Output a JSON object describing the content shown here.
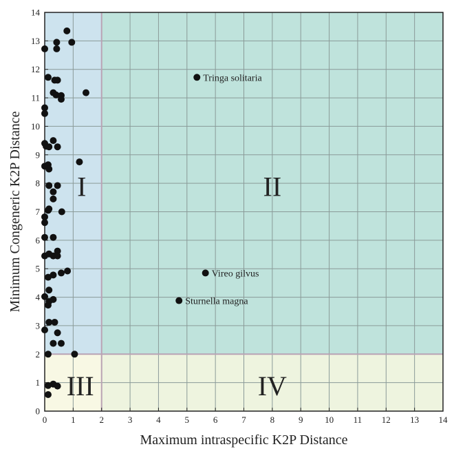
{
  "chart_data": {
    "type": "scatter",
    "xlabel": "Maximum intraspecific K2P Distance",
    "ylabel": "Minimum Congeneric K2P Distance",
    "xlim": [
      0,
      14
    ],
    "ylim": [
      0,
      14
    ],
    "xticks": [
      0,
      1,
      2,
      3,
      4,
      5,
      6,
      7,
      8,
      9,
      10,
      11,
      12,
      13,
      14
    ],
    "yticks": [
      0,
      1,
      2,
      3,
      4,
      5,
      6,
      7,
      8,
      9,
      10,
      11,
      12,
      13,
      14
    ],
    "grid": true,
    "threshold": {
      "x": 2,
      "y": 2
    },
    "quadrants": [
      {
        "label": "I",
        "x": 1.3,
        "y": 7.9,
        "color": "#cde3ee"
      },
      {
        "label": "II",
        "x": 8.0,
        "y": 7.9,
        "color": "#bfe3dc"
      },
      {
        "label": "III",
        "x": 1.25,
        "y": 0.9,
        "color": "#f8f8e4"
      },
      {
        "label": "IV",
        "x": 8.0,
        "y": 0.9,
        "color": "#eef4df"
      }
    ],
    "annotations": [
      {
        "text": "Tringa solitaria",
        "x": 5.35,
        "y": 11.72
      },
      {
        "text": "Vireo gilvus",
        "x": 5.65,
        "y": 4.85
      },
      {
        "text": "Sturnella magna",
        "x": 4.72,
        "y": 3.88
      }
    ],
    "points": [
      {
        "x": 0.78,
        "y": 13.35
      },
      {
        "x": 0.0,
        "y": 12.72
      },
      {
        "x": 0.42,
        "y": 12.95
      },
      {
        "x": 0.42,
        "y": 12.72
      },
      {
        "x": 0.95,
        "y": 12.95
      },
      {
        "x": 0.12,
        "y": 11.72
      },
      {
        "x": 0.35,
        "y": 11.62
      },
      {
        "x": 0.45,
        "y": 11.62
      },
      {
        "x": 0.3,
        "y": 11.18
      },
      {
        "x": 0.4,
        "y": 11.1
      },
      {
        "x": 0.58,
        "y": 11.08
      },
      {
        "x": 0.58,
        "y": 10.95
      },
      {
        "x": 1.45,
        "y": 11.18
      },
      {
        "x": 0.0,
        "y": 10.65
      },
      {
        "x": 0.0,
        "y": 10.45
      },
      {
        "x": 0.0,
        "y": 9.4
      },
      {
        "x": 0.05,
        "y": 9.3
      },
      {
        "x": 0.15,
        "y": 9.28
      },
      {
        "x": 0.3,
        "y": 9.5
      },
      {
        "x": 0.45,
        "y": 9.28
      },
      {
        "x": 0.0,
        "y": 8.6
      },
      {
        "x": 0.12,
        "y": 8.65
      },
      {
        "x": 0.15,
        "y": 8.5
      },
      {
        "x": 1.22,
        "y": 8.75
      },
      {
        "x": 0.15,
        "y": 7.92
      },
      {
        "x": 0.45,
        "y": 7.92
      },
      {
        "x": 0.3,
        "y": 7.7
      },
      {
        "x": 0.3,
        "y": 7.45
      },
      {
        "x": 0.12,
        "y": 7.05
      },
      {
        "x": 0.15,
        "y": 7.1
      },
      {
        "x": 0.6,
        "y": 7.0
      },
      {
        "x": 0.0,
        "y": 6.82
      },
      {
        "x": 0.0,
        "y": 6.62
      },
      {
        "x": 0.0,
        "y": 6.1
      },
      {
        "x": 0.3,
        "y": 6.1
      },
      {
        "x": 0.0,
        "y": 5.45
      },
      {
        "x": 0.15,
        "y": 5.52
      },
      {
        "x": 0.3,
        "y": 5.45
      },
      {
        "x": 0.45,
        "y": 5.62
      },
      {
        "x": 0.45,
        "y": 5.45
      },
      {
        "x": 0.12,
        "y": 4.7
      },
      {
        "x": 0.3,
        "y": 4.78
      },
      {
        "x": 0.58,
        "y": 4.85
      },
      {
        "x": 0.8,
        "y": 4.92
      },
      {
        "x": 0.0,
        "y": 4.02
      },
      {
        "x": 0.15,
        "y": 4.25
      },
      {
        "x": 0.15,
        "y": 3.85
      },
      {
        "x": 0.3,
        "y": 3.92
      },
      {
        "x": 0.12,
        "y": 3.72
      },
      {
        "x": 0.15,
        "y": 3.12
      },
      {
        "x": 0.35,
        "y": 3.12
      },
      {
        "x": 0.0,
        "y": 2.85
      },
      {
        "x": 0.45,
        "y": 2.75
      },
      {
        "x": 0.3,
        "y": 2.38
      },
      {
        "x": 0.58,
        "y": 2.38
      },
      {
        "x": 0.12,
        "y": 2.0
      },
      {
        "x": 1.05,
        "y": 2.0
      },
      {
        "x": 0.3,
        "y": 0.95
      },
      {
        "x": 0.12,
        "y": 0.9
      },
      {
        "x": 0.45,
        "y": 0.88
      },
      {
        "x": 0.12,
        "y": 0.58
      },
      {
        "x": 5.35,
        "y": 11.72
      },
      {
        "x": 5.65,
        "y": 4.85
      },
      {
        "x": 4.72,
        "y": 3.88
      }
    ]
  }
}
